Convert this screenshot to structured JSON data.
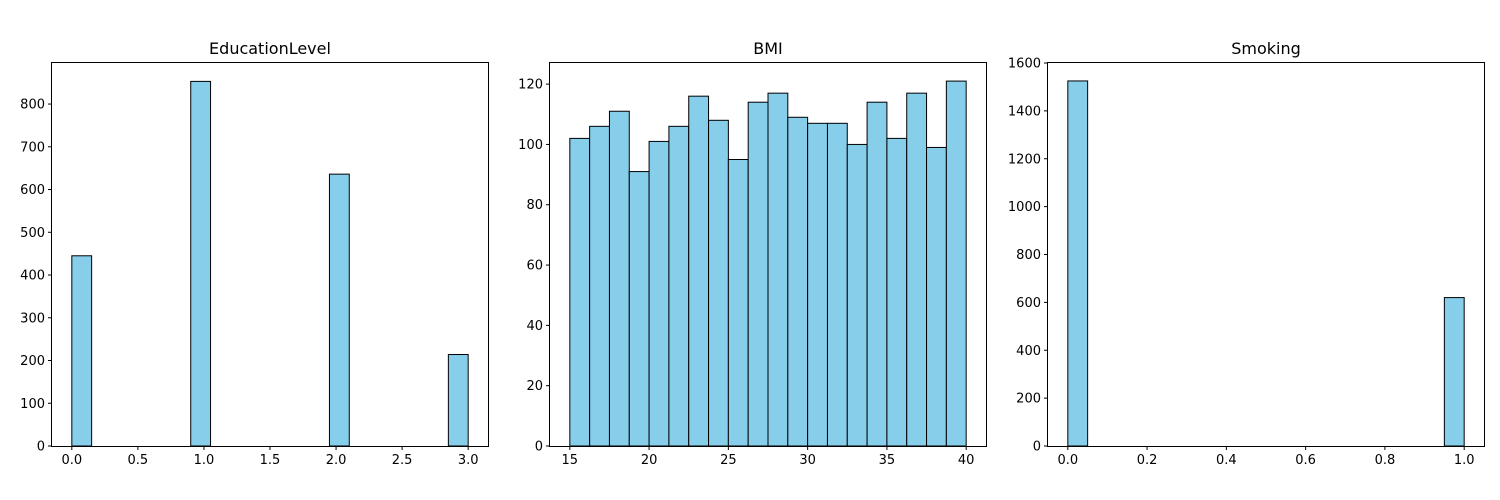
{
  "colors": {
    "bar_fill": "#87ceeb",
    "bar_edge": "#000000",
    "axes": "#000000",
    "background": "#ffffff"
  },
  "chart_data": [
    {
      "type": "bar",
      "title": "EducationLevel",
      "xlabel": "",
      "ylabel": "",
      "xlim": [
        -0.15,
        3.15
      ],
      "ylim": [
        0,
        896
      ],
      "bins": [
        {
          "x0": 0.0,
          "x1": 0.15,
          "value": 445
        },
        {
          "x0": 0.9,
          "x1": 1.05,
          "value": 853
        },
        {
          "x0": 1.95,
          "x1": 2.1,
          "value": 636
        },
        {
          "x0": 2.85,
          "x1": 3.0,
          "value": 214
        }
      ],
      "x_ticks": [
        "0.0",
        "0.5",
        "1.0",
        "1.5",
        "2.0",
        "2.5",
        "3.0"
      ],
      "y_ticks": [
        "0",
        "100",
        "200",
        "300",
        "400",
        "500",
        "600",
        "700",
        "800"
      ]
    },
    {
      "type": "bar",
      "title": "BMI",
      "xlabel": "",
      "ylabel": "",
      "xlim": [
        13.75,
        41.25
      ],
      "ylim": [
        0,
        127
      ],
      "bin_edges": [
        15,
        16.25,
        17.5,
        18.75,
        20,
        21.25,
        22.5,
        23.75,
        25,
        26.25,
        27.5,
        28.75,
        30,
        31.25,
        32.5,
        33.75,
        35,
        36.25,
        37.5,
        38.75,
        40
      ],
      "values": [
        102,
        106,
        111,
        91,
        101,
        106,
        116,
        108,
        95,
        114,
        117,
        109,
        107,
        107,
        100,
        114,
        102,
        117,
        99,
        121
      ],
      "x_ticks": [
        "15",
        "20",
        "25",
        "30",
        "35",
        "40"
      ],
      "y_ticks": [
        "0",
        "20",
        "40",
        "60",
        "80",
        "100",
        "120"
      ]
    },
    {
      "type": "bar",
      "title": "Smoking",
      "xlabel": "",
      "ylabel": "",
      "xlim": [
        -0.05,
        1.05
      ],
      "ylim": [
        0,
        1600
      ],
      "bins": [
        {
          "x0": 0.0,
          "x1": 0.05,
          "value": 1525
        },
        {
          "x0": 0.95,
          "x1": 1.0,
          "value": 620
        }
      ],
      "x_ticks": [
        "0.0",
        "0.2",
        "0.4",
        "0.6",
        "0.8",
        "1.0"
      ],
      "y_ticks": [
        "0",
        "200",
        "400",
        "600",
        "800",
        "1000",
        "1200",
        "1400",
        "1600"
      ]
    }
  ]
}
